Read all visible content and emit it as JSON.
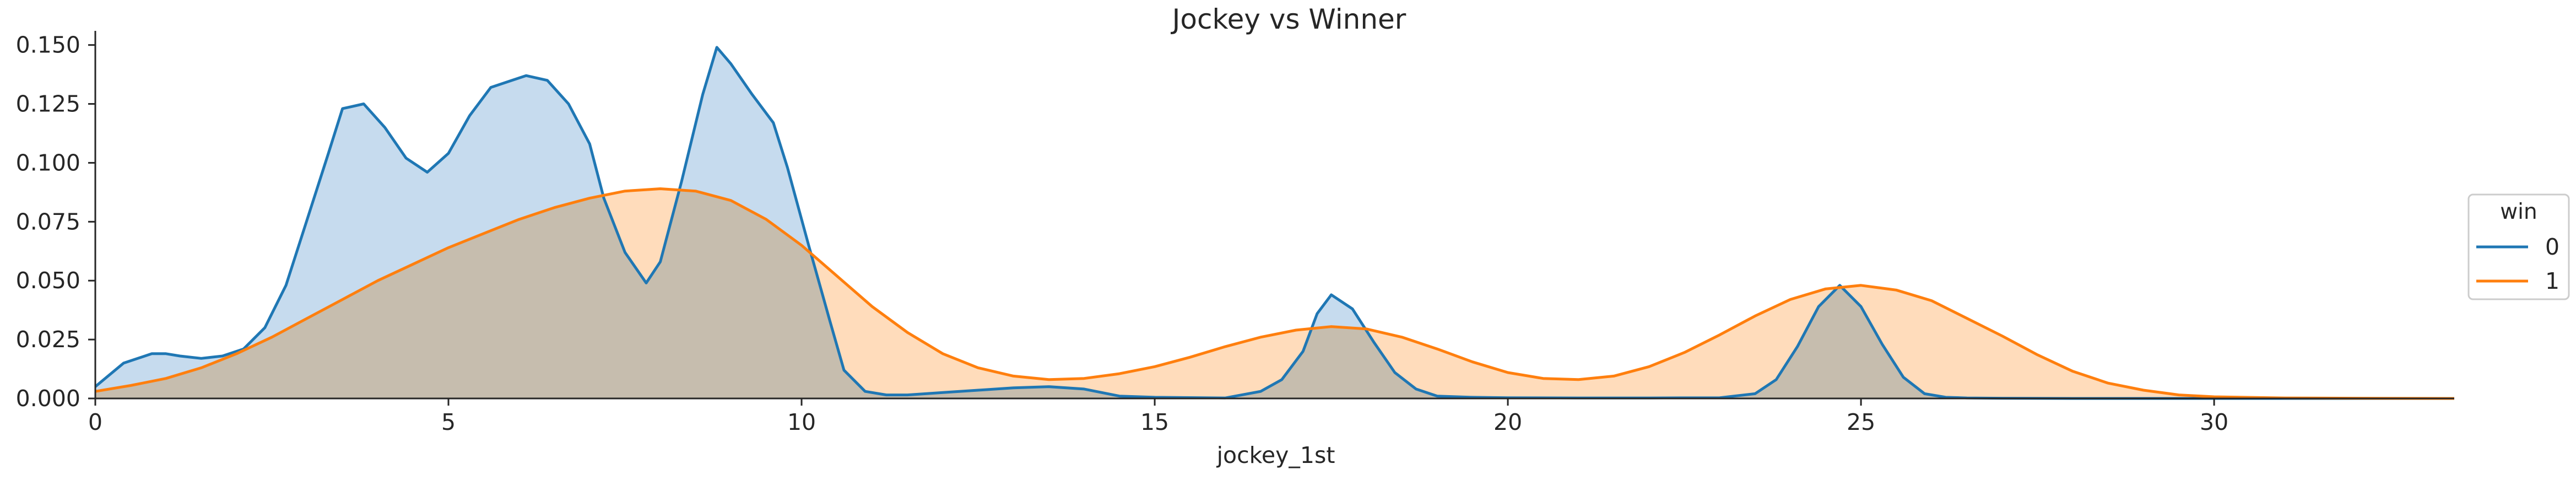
{
  "chart_data": {
    "type": "area",
    "title": "Jockey vs Winner",
    "xlabel": "jockey_1st",
    "ylabel": "",
    "xlim": [
      0,
      33.4
    ],
    "ylim": [
      0,
      0.156
    ],
    "x_ticks": [
      0,
      5,
      10,
      15,
      20,
      25,
      30
    ],
    "x_tick_labels": [
      "0",
      "5",
      "10",
      "15",
      "20",
      "25",
      "30"
    ],
    "y_ticks": [
      0,
      0.025,
      0.05,
      0.075,
      0.1,
      0.125,
      0.15
    ],
    "y_tick_labels": [
      "0.000",
      "0.025",
      "0.050",
      "0.075",
      "0.100",
      "0.125",
      "0.150"
    ],
    "grid": false,
    "legend": {
      "title": "win",
      "placement": "right"
    },
    "series": [
      {
        "name": "0",
        "color": "#1f77b4",
        "fill_color": "#c6dbee",
        "x": [
          0,
          0.4,
          0.8,
          1.0,
          1.2,
          1.5,
          1.8,
          2.1,
          2.4,
          2.7,
          3.0,
          3.3,
          3.5,
          3.8,
          4.1,
          4.4,
          4.7,
          5.0,
          5.3,
          5.6,
          5.9,
          6.1,
          6.4,
          6.7,
          7.0,
          7.2,
          7.5,
          7.8,
          8.0,
          8.3,
          8.6,
          8.8,
          9.0,
          9.3,
          9.6,
          9.8,
          10.1,
          10.4,
          10.6,
          10.9,
          11.2,
          11.5,
          12.0,
          12.5,
          13.0,
          13.5,
          14.0,
          14.5,
          15.0,
          16.0,
          16.5,
          16.8,
          17.1,
          17.3,
          17.5,
          17.8,
          18.1,
          18.4,
          18.7,
          19.0,
          19.5,
          20.0,
          21.0,
          22.0,
          23.0,
          23.5,
          23.8,
          24.1,
          24.4,
          24.7,
          25.0,
          25.3,
          25.6,
          25.9,
          26.2,
          26.5,
          27.0,
          28.0,
          30.0,
          33.4
        ],
        "y": [
          0.005,
          0.015,
          0.019,
          0.019,
          0.018,
          0.017,
          0.018,
          0.021,
          0.03,
          0.048,
          0.076,
          0.104,
          0.123,
          0.125,
          0.115,
          0.102,
          0.096,
          0.104,
          0.12,
          0.132,
          0.135,
          0.137,
          0.135,
          0.125,
          0.108,
          0.085,
          0.062,
          0.049,
          0.058,
          0.092,
          0.129,
          0.149,
          0.142,
          0.129,
          0.117,
          0.098,
          0.065,
          0.033,
          0.012,
          0.003,
          0.0015,
          0.0015,
          0.0025,
          0.0035,
          0.0045,
          0.005,
          0.004,
          0.001,
          0.0005,
          0.0002,
          0.003,
          0.008,
          0.02,
          0.036,
          0.044,
          0.038,
          0.024,
          0.011,
          0.004,
          0.001,
          0.0005,
          0.0003,
          0.0002,
          0.0002,
          0.0003,
          0.002,
          0.008,
          0.022,
          0.039,
          0.048,
          0.039,
          0.023,
          0.009,
          0.002,
          0.0005,
          0.0002,
          0.0001,
          0,
          0,
          0
        ]
      },
      {
        "name": "1",
        "color": "#ff7f0e",
        "fill_color": "#ffdcbb",
        "x": [
          0,
          0.5,
          1.0,
          1.5,
          2.0,
          2.5,
          3.0,
          3.5,
          4.0,
          4.5,
          5.0,
          5.5,
          6.0,
          6.5,
          7.0,
          7.5,
          8.0,
          8.5,
          9.0,
          9.5,
          10.0,
          10.5,
          11.0,
          11.5,
          12.0,
          12.5,
          13.0,
          13.5,
          14.0,
          14.5,
          15.0,
          15.5,
          16.0,
          16.5,
          17.0,
          17.5,
          18.0,
          18.5,
          19.0,
          19.5,
          20.0,
          20.5,
          21.0,
          21.5,
          22.0,
          22.5,
          23.0,
          23.5,
          24.0,
          24.5,
          25.0,
          25.5,
          26.0,
          26.5,
          27.0,
          27.5,
          28.0,
          28.5,
          29.0,
          29.5,
          30.0,
          31.0,
          32.0,
          33.4
        ],
        "y": [
          0.003,
          0.0055,
          0.0085,
          0.013,
          0.019,
          0.026,
          0.034,
          0.042,
          0.05,
          0.057,
          0.064,
          0.07,
          0.076,
          0.081,
          0.085,
          0.088,
          0.089,
          0.088,
          0.084,
          0.076,
          0.065,
          0.052,
          0.039,
          0.028,
          0.019,
          0.013,
          0.0095,
          0.008,
          0.0085,
          0.0105,
          0.0135,
          0.0175,
          0.022,
          0.026,
          0.029,
          0.0305,
          0.0295,
          0.026,
          0.021,
          0.0155,
          0.011,
          0.0085,
          0.008,
          0.0095,
          0.0135,
          0.0195,
          0.027,
          0.035,
          0.042,
          0.0465,
          0.048,
          0.046,
          0.0415,
          0.034,
          0.0265,
          0.0185,
          0.0115,
          0.0065,
          0.0035,
          0.0015,
          0.0007,
          0.0002,
          0.0001,
          0
        ]
      }
    ]
  }
}
